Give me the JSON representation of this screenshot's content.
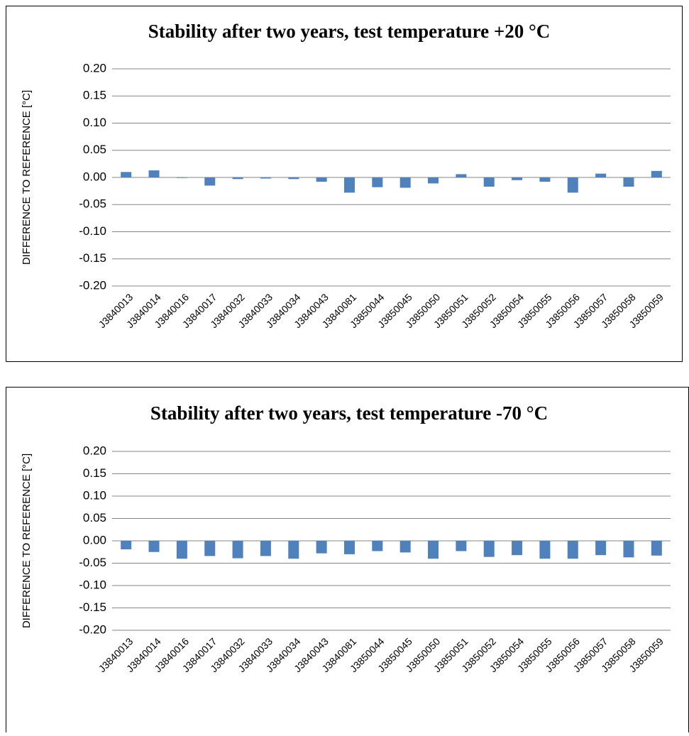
{
  "chart_data": [
    {
      "type": "bar",
      "title": "Stability after two years, test temperature +20 °C",
      "y_label": "DIFFERENCE TO REFERENCE [°C]",
      "categories": [
        "J3840013",
        "J3840014",
        "J3840016",
        "J3840017",
        "J3840032",
        "J3840033",
        "J3840034",
        "J3840043",
        "J3840081",
        "J3850044",
        "J3850045",
        "J3850050",
        "J3850051",
        "J3850052",
        "J3850054",
        "J3850055",
        "J3850056",
        "J3850057",
        "J3850058",
        "J3850059"
      ],
      "values": [
        0.01,
        0.013,
        -0.001,
        -0.015,
        -0.003,
        -0.002,
        -0.003,
        -0.008,
        -0.028,
        -0.018,
        -0.019,
        -0.011,
        0.006,
        -0.017,
        -0.005,
        -0.008,
        -0.028,
        0.007,
        -0.017,
        0.012
      ],
      "color": "#4f81bd",
      "ylim": [
        -0.2,
        0.2
      ],
      "yticks": [
        {
          "value": 0.2,
          "label": "0.20"
        },
        0.15,
        {
          "value": 0.1,
          "label": "0.10"
        },
        0.05,
        {
          "value": 0,
          "label": "0.00"
        },
        -0.05,
        {
          "value": -0.1,
          "label": "-0.10"
        },
        -0.15,
        {
          "value": -0.2,
          "label": "-0.20"
        }
      ],
      "grid": true
    },
    {
      "type": "bar",
      "title": "Stability after two years, test temperature -70 °C",
      "y_label": "DIFFERENCE TO REFERENCE [°C]",
      "categories": [
        "J3840013",
        "J3840014",
        "J3840016",
        "J3840017",
        "J3840032",
        "J3840033",
        "J3840034",
        "J3840043",
        "J3840081",
        "J3850044",
        "J3850045",
        "J3850050",
        "J3850051",
        "J3850052",
        "J3850054",
        "J3850055",
        "J3850056",
        "J3850057",
        "J3850058",
        "J3850059"
      ],
      "values": [
        -0.019,
        -0.025,
        -0.04,
        -0.034,
        -0.039,
        -0.034,
        -0.04,
        -0.028,
        -0.03,
        -0.023,
        -0.026,
        -0.04,
        -0.023,
        -0.036,
        -0.032,
        -0.04,
        -0.04,
        -0.032,
        -0.037,
        -0.033
      ],
      "color": "#4f81bd",
      "ylim": [
        -0.2,
        0.2
      ],
      "yticks": [
        {
          "value": 0.2,
          "label": "0.20"
        },
        0.15,
        {
          "value": 0.1,
          "label": "0.10"
        },
        0.05,
        {
          "value": 0,
          "label": "0.00"
        },
        -0.05,
        {
          "value": -0.1,
          "label": "-0.10"
        },
        -0.15,
        {
          "value": -0.2,
          "label": "-0.20"
        }
      ],
      "grid": true
    }
  ]
}
